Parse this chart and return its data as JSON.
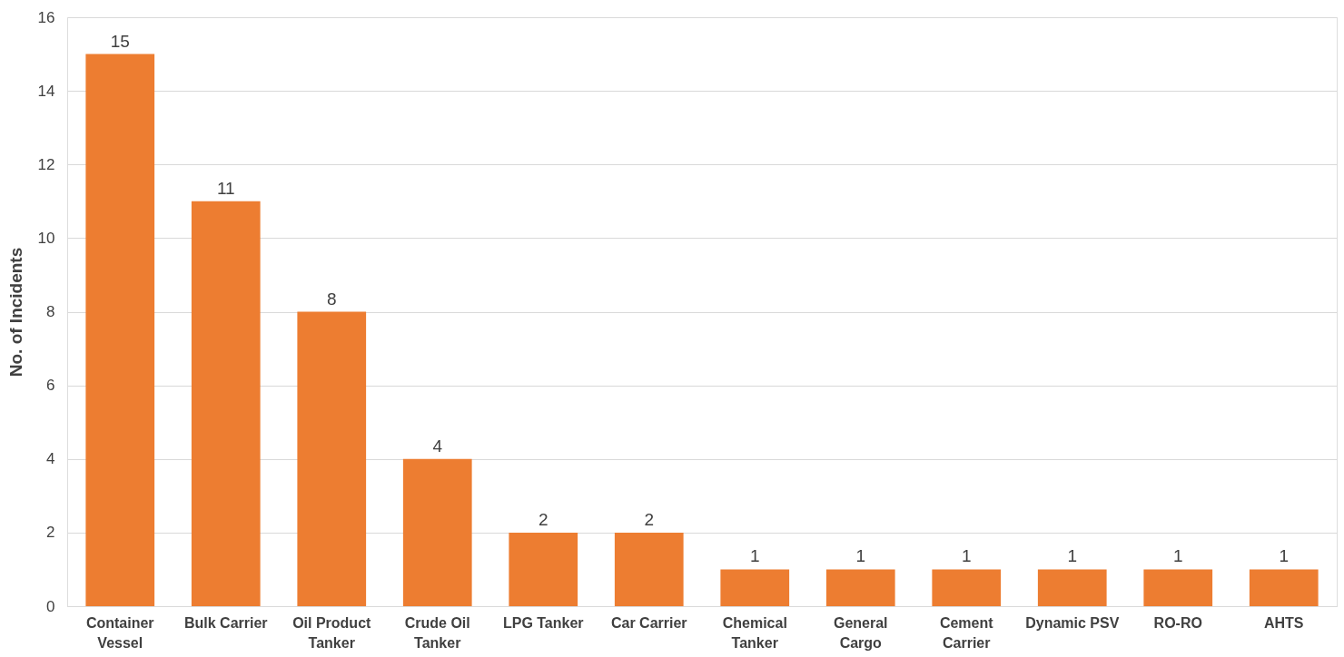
{
  "chart_data": {
    "type": "bar",
    "ylabel": "No. of Incidents",
    "categories": [
      "Container Vessel",
      "Bulk Carrier",
      "Oil Product Tanker",
      "Crude Oil Tanker",
      "LPG Tanker",
      "Car Carrier",
      "Chemical Tanker",
      "General Cargo",
      "Cement Carrier",
      "Dynamic PSV",
      "RO-RO",
      "AHTS"
    ],
    "values": [
      15,
      11,
      8,
      4,
      2,
      2,
      1,
      1,
      1,
      1,
      1,
      1
    ],
    "color": "#ed7d31",
    "ylim": [
      0,
      16
    ],
    "yticks": [
      0,
      2,
      4,
      6,
      8,
      10,
      12,
      14,
      16
    ],
    "grid": "y",
    "data_labels": true
  }
}
